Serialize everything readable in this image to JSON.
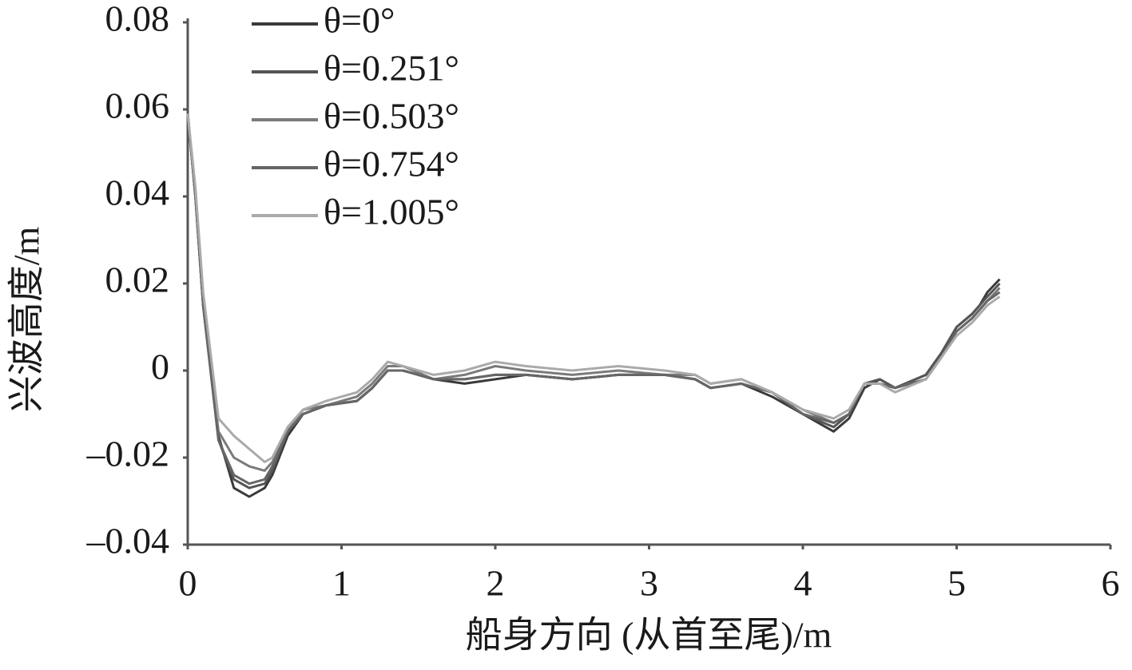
{
  "chart_data": {
    "type": "line",
    "x_label": "船身方向 (从首至尾)/m",
    "y_label": "兴波高度/m",
    "x": [
      0,
      0.05,
      0.1,
      0.2,
      0.3,
      0.4,
      0.5,
      0.55,
      0.65,
      0.75,
      0.9,
      1.1,
      1.2,
      1.3,
      1.4,
      1.6,
      1.8,
      2.0,
      2.2,
      2.5,
      2.8,
      3.1,
      3.3,
      3.4,
      3.6,
      3.8,
      4.0,
      4.2,
      4.3,
      4.4,
      4.5,
      4.6,
      4.8,
      4.9,
      5.0,
      5.1,
      5.15,
      5.2,
      5.28
    ],
    "series": [
      {
        "name": "θ=0°",
        "color": "#3a3a3a",
        "values": [
          0.059,
          0.04,
          0.015,
          -0.015,
          -0.027,
          -0.029,
          -0.027,
          -0.024,
          -0.015,
          -0.01,
          -0.008,
          -0.007,
          -0.004,
          0.0,
          0.0,
          -0.002,
          -0.003,
          -0.002,
          -0.001,
          -0.002,
          -0.001,
          -0.001,
          -0.002,
          -0.004,
          -0.003,
          -0.006,
          -0.01,
          -0.014,
          -0.011,
          -0.004,
          -0.002,
          -0.004,
          -0.001,
          0.004,
          0.01,
          0.013,
          0.015,
          0.018,
          0.021
        ]
      },
      {
        "name": "θ=0.251°",
        "color": "#555555",
        "values": [
          0.059,
          0.04,
          0.015,
          -0.016,
          -0.025,
          -0.027,
          -0.026,
          -0.023,
          -0.014,
          -0.01,
          -0.008,
          -0.007,
          -0.004,
          0.0,
          0.0,
          -0.002,
          -0.002,
          -0.001,
          -0.001,
          -0.002,
          -0.001,
          -0.001,
          -0.002,
          -0.004,
          -0.003,
          -0.005,
          -0.01,
          -0.013,
          -0.01,
          -0.003,
          -0.002,
          -0.004,
          -0.001,
          0.004,
          0.01,
          0.013,
          0.015,
          0.017,
          0.02
        ]
      },
      {
        "name": "θ=0.503°",
        "color": "#7a7a7a",
        "values": [
          0.059,
          0.041,
          0.016,
          -0.014,
          -0.02,
          -0.022,
          -0.023,
          -0.021,
          -0.014,
          -0.009,
          -0.008,
          -0.006,
          -0.003,
          0.001,
          0.001,
          -0.002,
          -0.001,
          0.001,
          0.0,
          -0.001,
          0.0,
          -0.001,
          -0.001,
          -0.003,
          -0.002,
          -0.005,
          -0.009,
          -0.012,
          -0.01,
          -0.003,
          -0.003,
          -0.004,
          -0.002,
          0.003,
          0.009,
          0.012,
          0.014,
          0.016,
          0.019
        ]
      },
      {
        "name": "θ=0.754°",
        "color": "#666666",
        "values": [
          0.059,
          0.04,
          0.015,
          -0.016,
          -0.024,
          -0.026,
          -0.025,
          -0.022,
          -0.014,
          -0.01,
          -0.008,
          -0.007,
          -0.004,
          0.0,
          0.0,
          -0.002,
          -0.002,
          -0.001,
          -0.001,
          -0.002,
          -0.001,
          -0.001,
          -0.002,
          -0.004,
          -0.003,
          -0.005,
          -0.01,
          -0.012,
          -0.01,
          -0.003,
          -0.003,
          -0.004,
          -0.002,
          0.003,
          0.009,
          0.012,
          0.014,
          0.016,
          0.018
        ]
      },
      {
        "name": "θ=1.005°",
        "color": "#aaaaaa",
        "values": [
          0.059,
          0.042,
          0.018,
          -0.011,
          -0.015,
          -0.018,
          -0.021,
          -0.02,
          -0.013,
          -0.009,
          -0.007,
          -0.005,
          -0.002,
          0.002,
          0.001,
          -0.001,
          0.0,
          0.002,
          0.001,
          0.0,
          0.001,
          0.0,
          -0.001,
          -0.003,
          -0.002,
          -0.005,
          -0.009,
          -0.011,
          -0.009,
          -0.003,
          -0.003,
          -0.005,
          -0.002,
          0.003,
          0.008,
          0.011,
          0.013,
          0.015,
          0.017
        ]
      }
    ],
    "xlim": [
      0,
      6
    ],
    "xticks": [
      0,
      1,
      2,
      3,
      4,
      5,
      6
    ],
    "ylim": [
      -0.04,
      0.08
    ],
    "yticks": [
      {
        "value": -0.04,
        "label": "–0.04"
      },
      {
        "value": -0.02,
        "label": "–0.02"
      },
      0,
      0.02,
      0.04,
      0.06,
      0.08
    ],
    "grid": false,
    "legend": "top-left"
  }
}
